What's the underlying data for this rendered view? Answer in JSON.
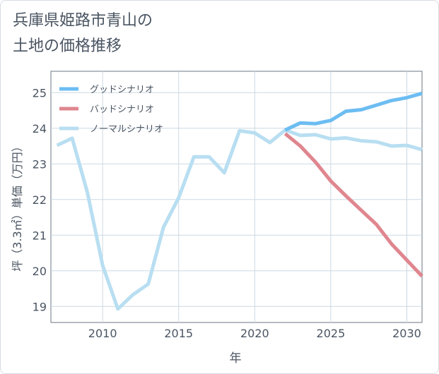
{
  "title_lines": [
    "兵庫県姫路市青山の",
    "土地の価格推移"
  ],
  "chart_data": {
    "type": "line",
    "title": "兵庫県姫路市青山の土地の価格推移",
    "xlabel": "年",
    "ylabel": "坪（3.3㎡）単価（万円）",
    "xlim": [
      2006.6,
      2031
    ],
    "ylim": [
      18.55,
      25.6
    ],
    "xticks": [
      2010,
      2015,
      2020,
      2025,
      2030
    ],
    "yticks": [
      19,
      20,
      21,
      22,
      23,
      24,
      25
    ],
    "grid": true,
    "legend_position": "top-left",
    "series": [
      {
        "name": "グッドシナリオ",
        "color": "#6cbdf2",
        "x": [
          2022,
          2023,
          2024,
          2025,
          2026,
          2027,
          2028,
          2029,
          2030,
          2031
        ],
        "y": [
          23.95,
          24.15,
          24.13,
          24.22,
          24.48,
          24.52,
          24.65,
          24.78,
          24.86,
          24.98
        ]
      },
      {
        "name": "バッドシナリオ",
        "color": "#df868f",
        "x": [
          2022,
          2023,
          2024,
          2025,
          2026,
          2027,
          2028,
          2029,
          2030,
          2031
        ],
        "y": [
          23.85,
          23.5,
          23.05,
          22.52,
          22.1,
          21.7,
          21.3,
          20.75,
          20.3,
          19.85
        ]
      },
      {
        "name": "ノーマルシナリオ",
        "color": "#b8def1",
        "x": [
          2007,
          2008,
          2009,
          2010,
          2011,
          2012,
          2013,
          2014,
          2015,
          2016,
          2017,
          2018,
          2019,
          2020,
          2021,
          2022,
          2023,
          2024,
          2025,
          2026,
          2027,
          2028,
          2029,
          2030,
          2031
        ],
        "y": [
          23.52,
          23.72,
          22.2,
          20.15,
          18.93,
          19.33,
          19.63,
          21.22,
          22.05,
          23.2,
          23.2,
          22.75,
          23.93,
          23.87,
          23.6,
          23.95,
          23.8,
          23.82,
          23.7,
          23.73,
          23.65,
          23.62,
          23.5,
          23.52,
          23.4
        ]
      }
    ]
  }
}
